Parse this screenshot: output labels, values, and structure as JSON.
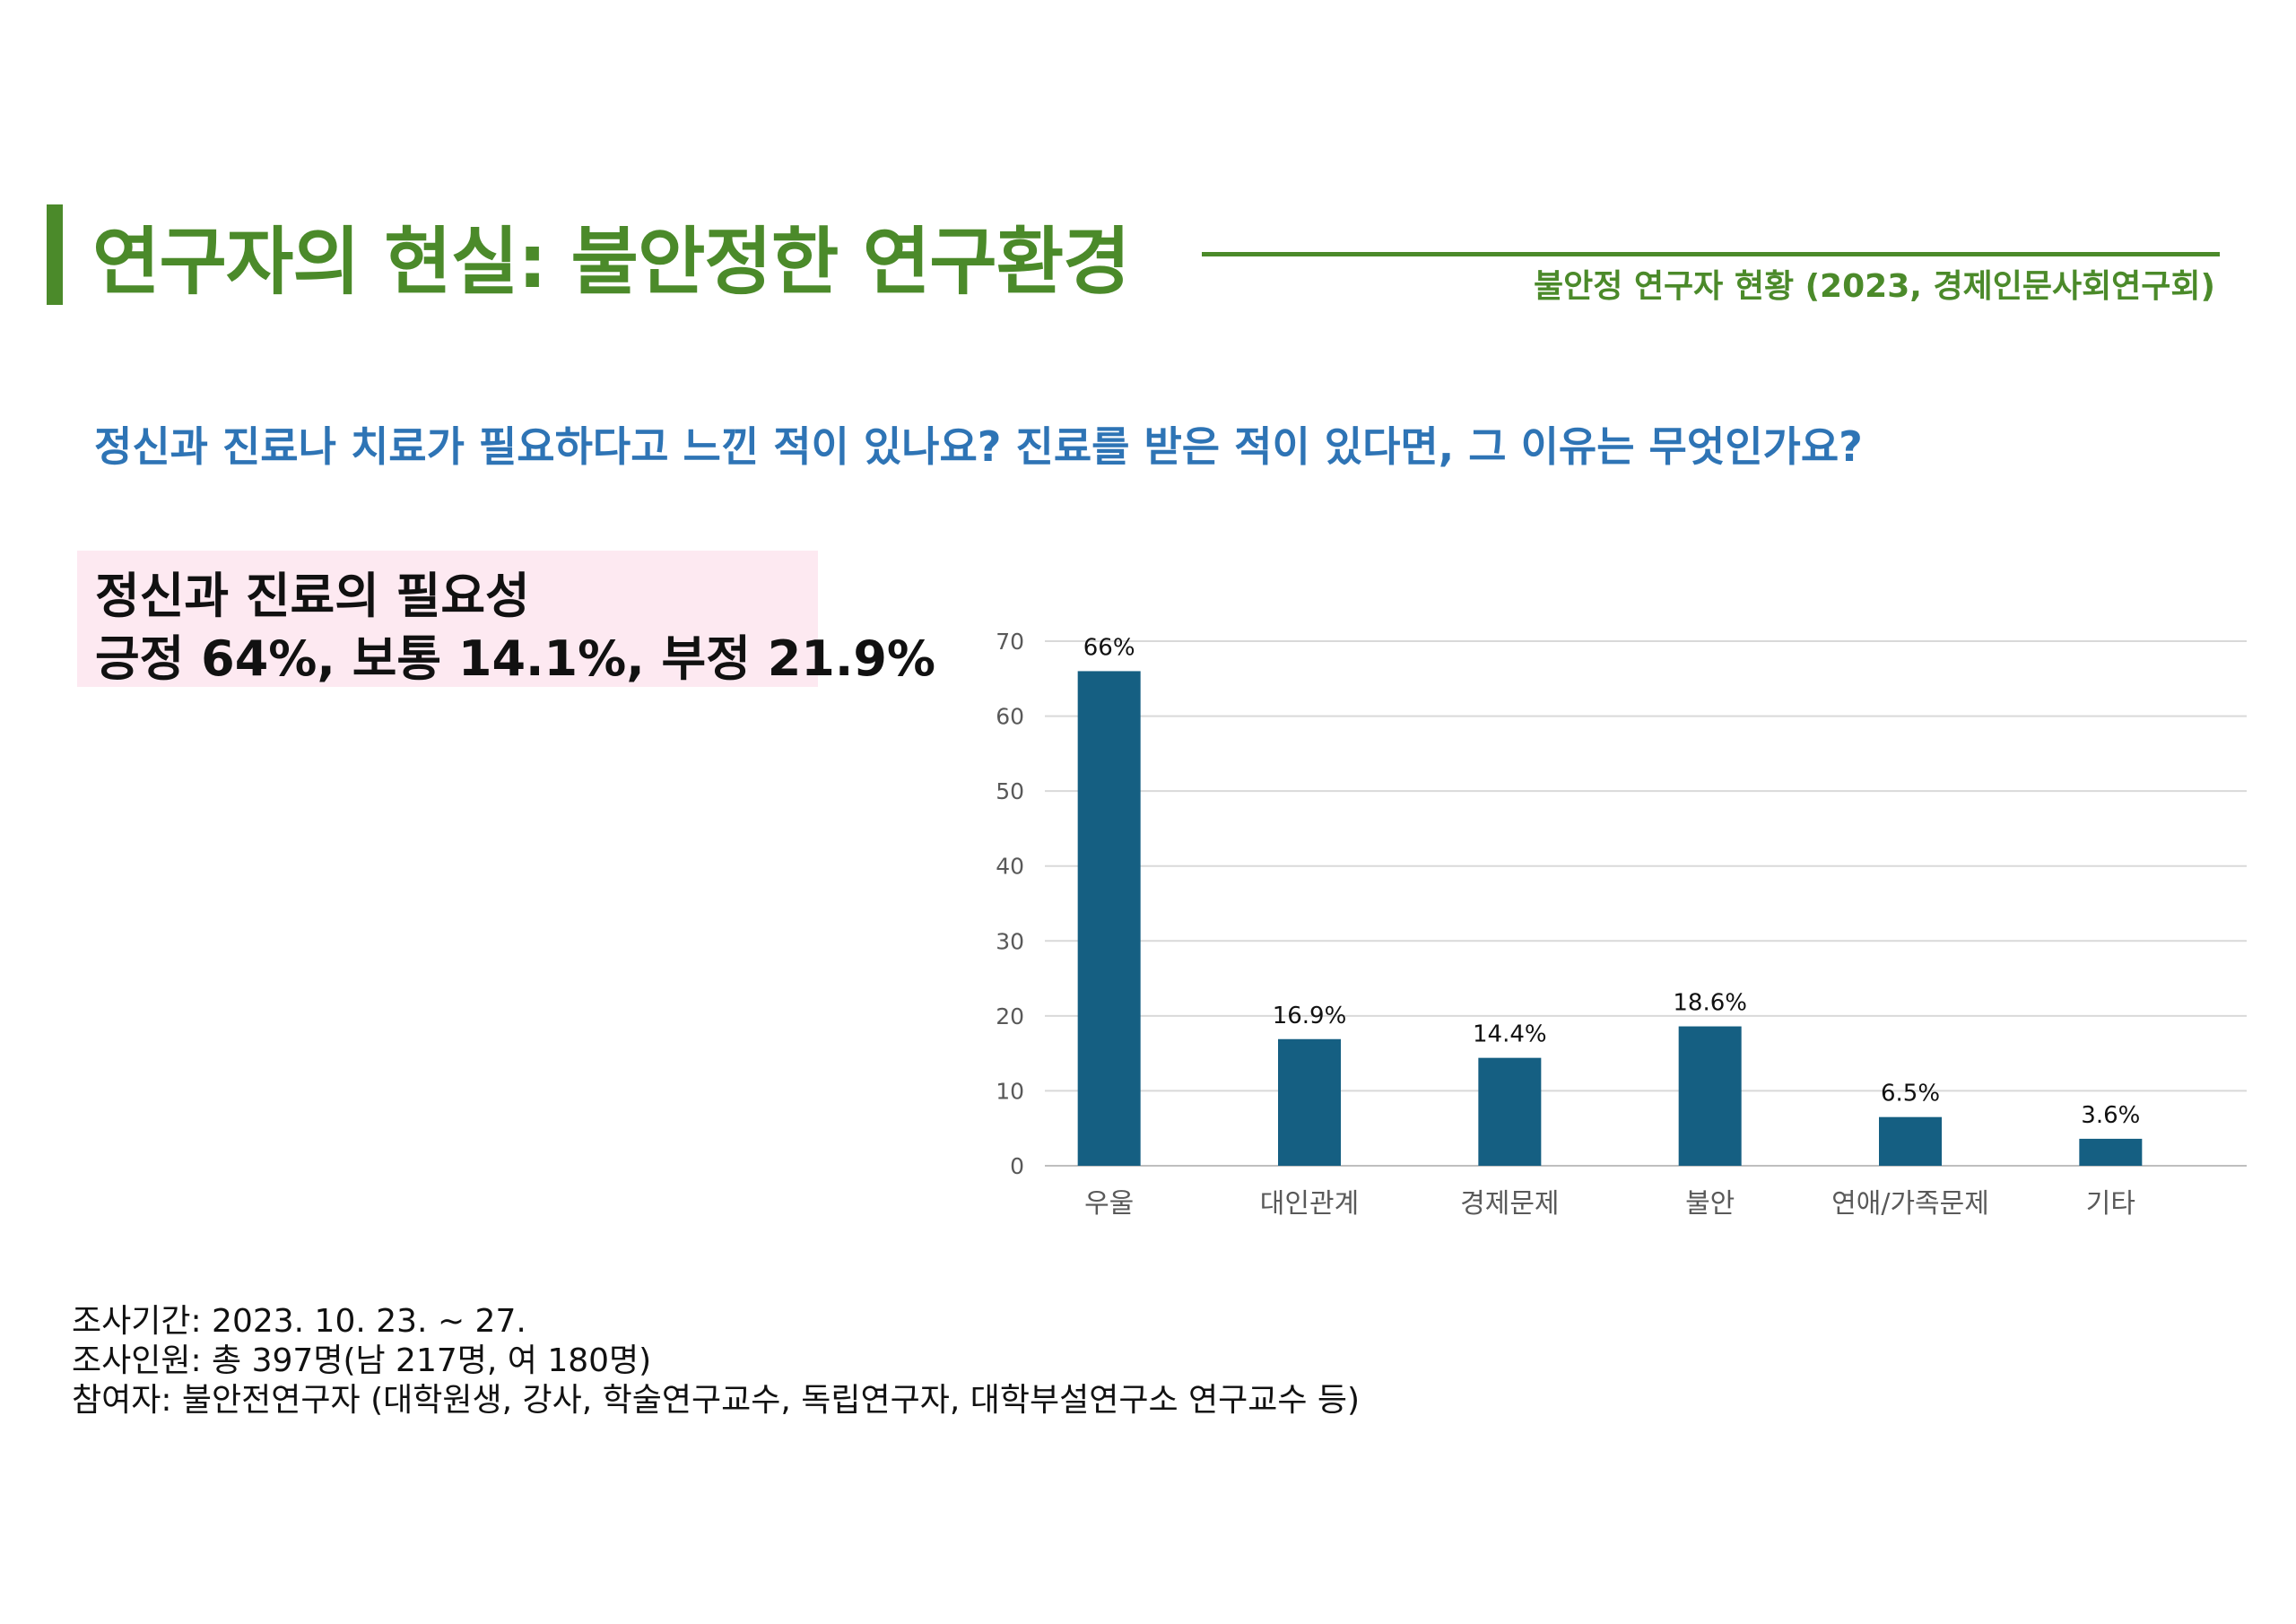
{
  "page": {
    "title": "연구자의 현실: 불안정한 연구환경",
    "source": "불안정 연구자 현황 (2023, 경제인문사회연구회)",
    "question": "정신과 진료나 치료가 필요하다고 느낀 적이 있나요? 진료를 받은 적이 있다면, 그 이유는 무엇인가요?"
  },
  "summary": {
    "line1": "정신과 진료의 필요성",
    "line2": "긍정 64%, 보통 14.1%, 부정 21.9%"
  },
  "footnotes": {
    "period": "조사기간: 2023. 10. 23. ~ 27.",
    "respondents": "조사인원: 총 397명(남 217명, 여 180명)",
    "participants": "참여자: 불안전연구자 (대학원생, 강사, 학술연구교수, 독립연구자, 대학부설연구소 연구교수 등)"
  },
  "colors": {
    "title_green": "#4b8a2a",
    "question_blue": "#2e74b5",
    "bar_blue": "#155f82",
    "summary_bg": "#fde9f1"
  },
  "chart_data": {
    "type": "bar",
    "categories": [
      "우울",
      "대인관계",
      "경제문제",
      "불안",
      "연애/가족문제",
      "기타"
    ],
    "values": [
      66,
      16.9,
      14.4,
      18.6,
      6.5,
      3.6
    ],
    "data_labels": [
      "66%",
      "16.9%",
      "14.4%",
      "18.6%",
      "6.5%",
      "3.6%"
    ],
    "yticks": [
      0,
      10,
      20,
      30,
      40,
      50,
      60,
      70
    ],
    "ylim": [
      0,
      70
    ],
    "grid": true,
    "legend": "none"
  }
}
